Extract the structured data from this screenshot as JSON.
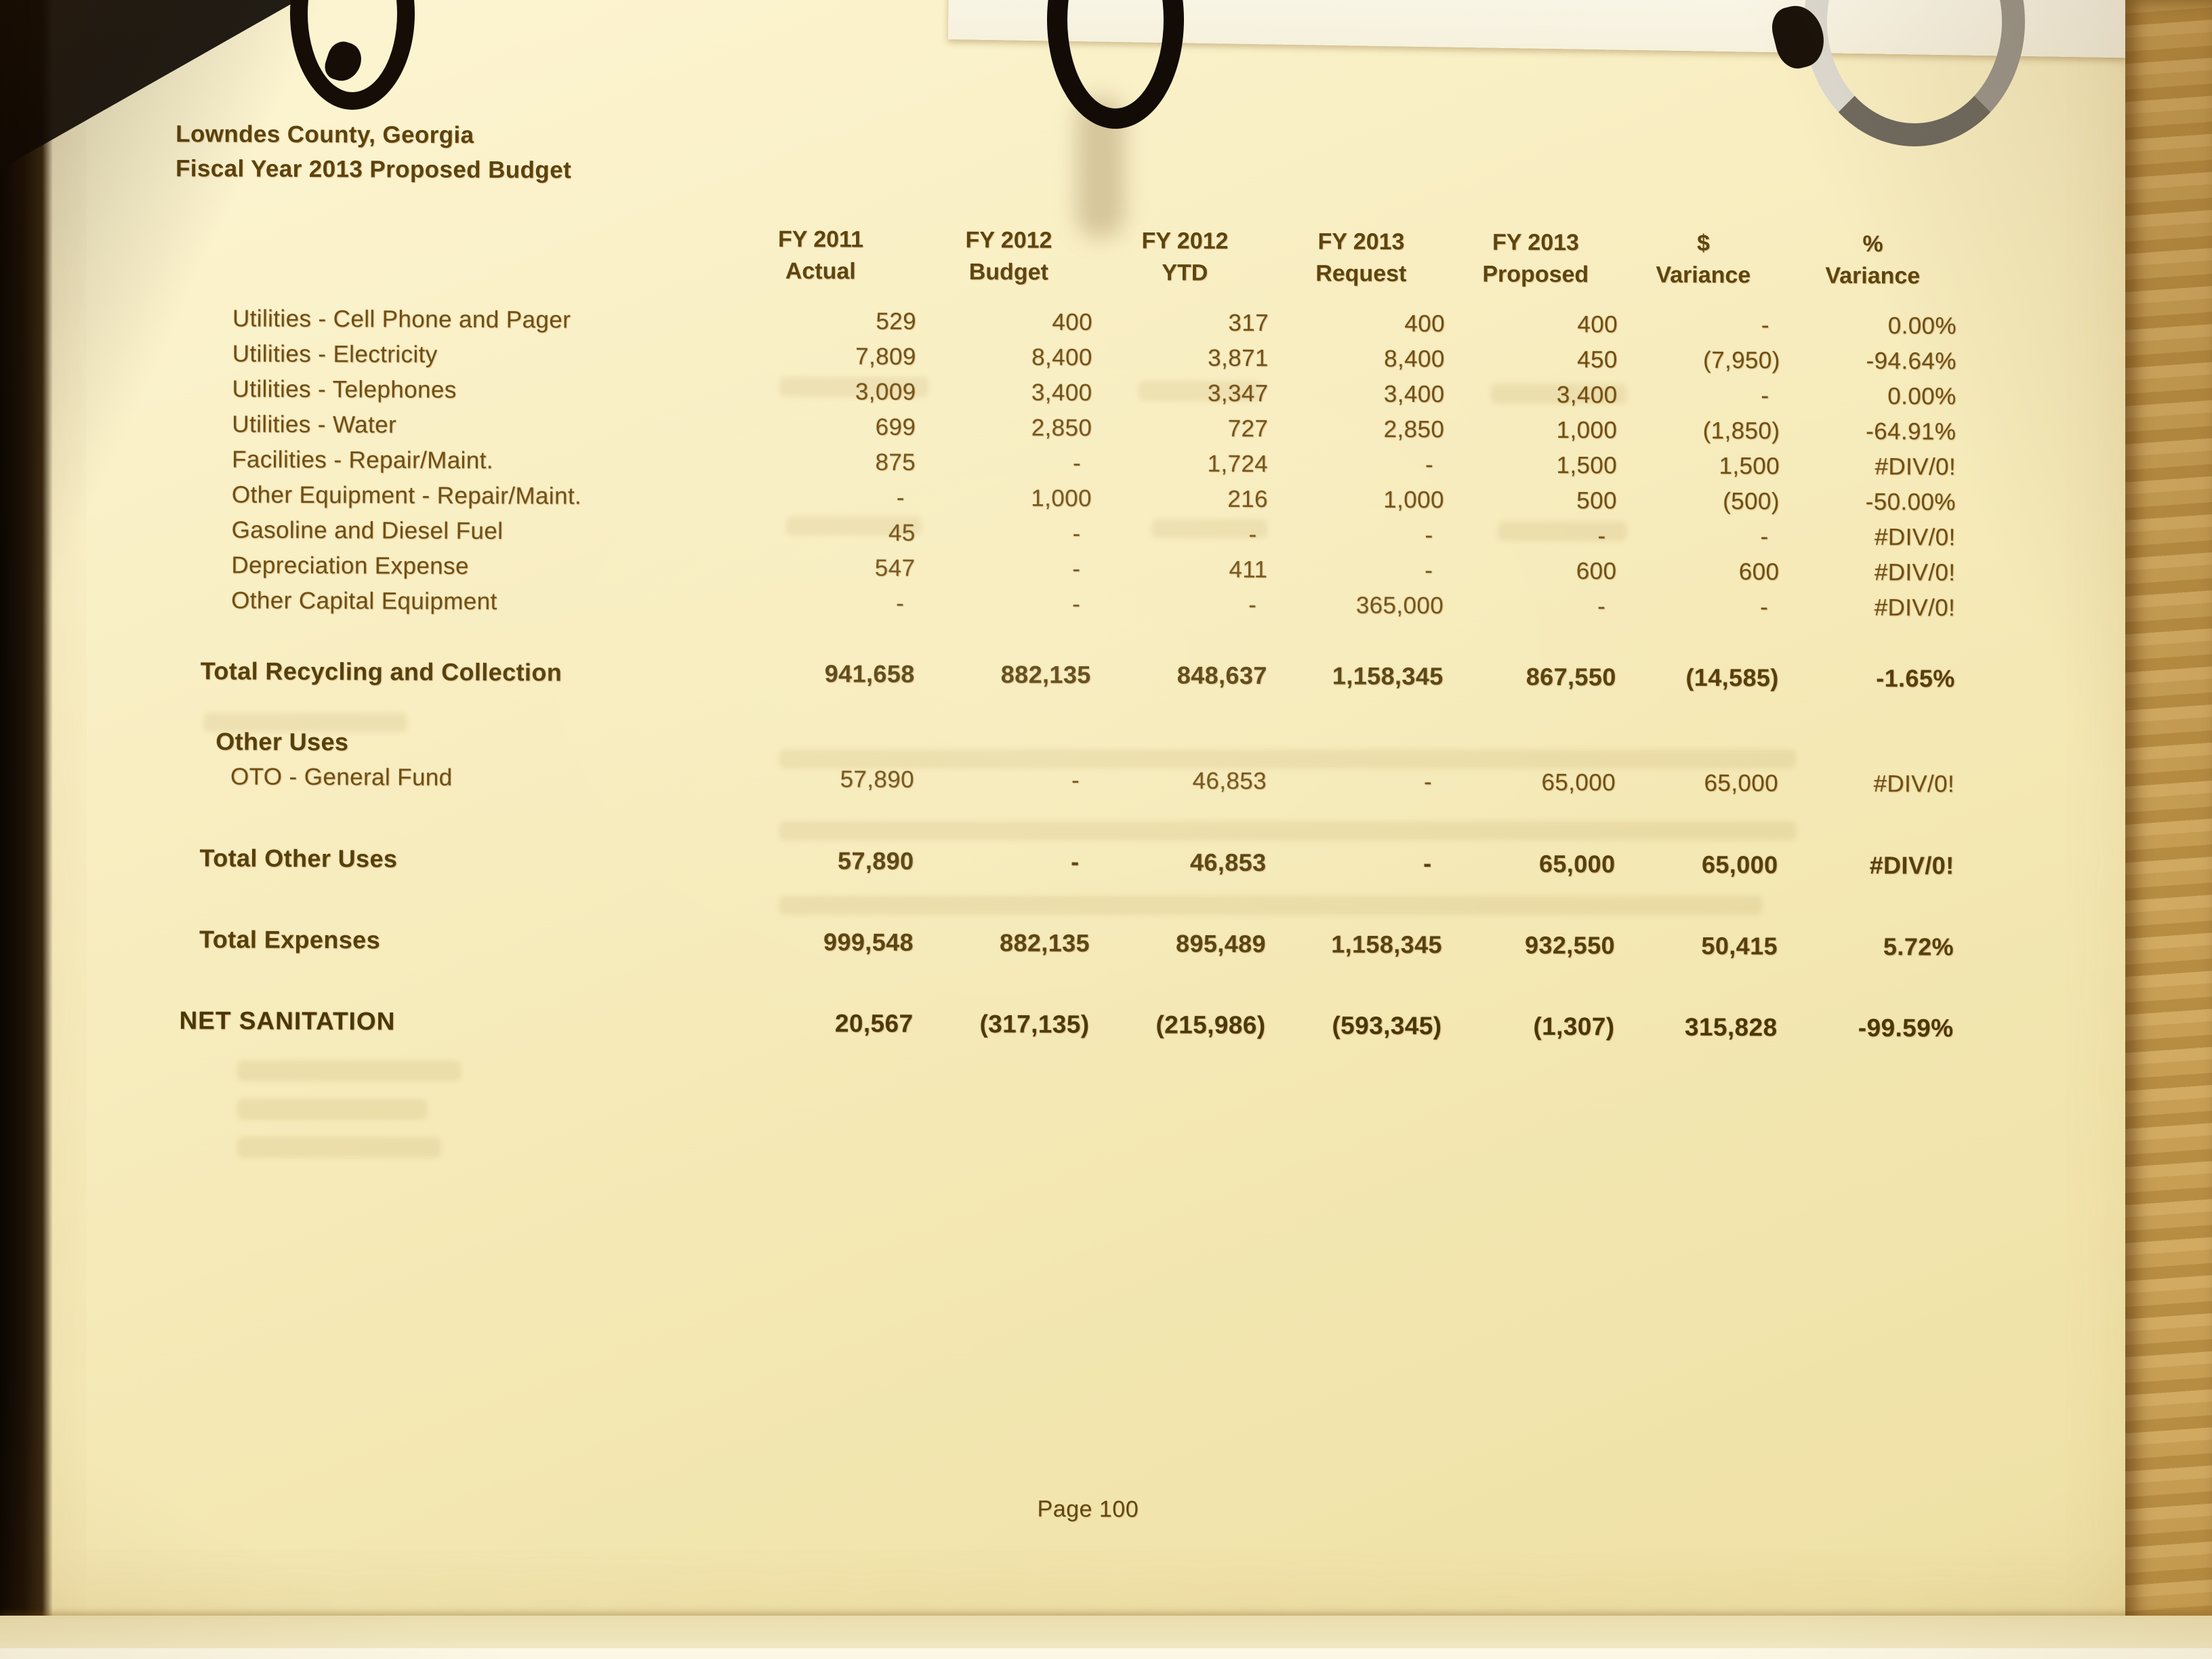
{
  "page": {
    "title": "Lowndes County, Georgia",
    "subtitle": "Fiscal Year 2013 Proposed Budget",
    "footer": "Page 100"
  },
  "colors": {
    "paper": "#f6ecbe",
    "ink": "#6d4f12",
    "ink_bold": "#4a3708"
  },
  "table": {
    "columns": [
      {
        "line1": "FY 2011",
        "line2": "Actual"
      },
      {
        "line1": "FY 2012",
        "line2": "Budget"
      },
      {
        "line1": "FY 2012",
        "line2": "YTD"
      },
      {
        "line1": "FY 2013",
        "line2": "Request"
      },
      {
        "line1": "FY 2013",
        "line2": "Proposed"
      },
      {
        "line1": "$",
        "line2": "Variance"
      },
      {
        "line1": "%",
        "line2": "Variance"
      }
    ],
    "rows": [
      {
        "type": "item",
        "gap": null,
        "label": "Utilities - Cell Phone and Pager",
        "values": [
          "529",
          "400",
          "317",
          "400",
          "400",
          "-",
          "0.00%"
        ]
      },
      {
        "type": "item",
        "gap": null,
        "label": "Utilities - Electricity",
        "values": [
          "7,809",
          "8,400",
          "3,871",
          "8,400",
          "450",
          "(7,950)",
          "-94.64%"
        ]
      },
      {
        "type": "item",
        "gap": null,
        "label": "Utilities - Telephones",
        "values": [
          "3,009",
          "3,400",
          "3,347",
          "3,400",
          "3,400",
          "-",
          "0.00%"
        ]
      },
      {
        "type": "item",
        "gap": null,
        "label": "Utilities - Water",
        "values": [
          "699",
          "2,850",
          "727",
          "2,850",
          "1,000",
          "(1,850)",
          "-64.91%"
        ]
      },
      {
        "type": "item",
        "gap": null,
        "label": "Facilities - Repair/Maint.",
        "values": [
          "875",
          "-",
          "1,724",
          "-",
          "1,500",
          "1,500",
          "#DIV/0!"
        ]
      },
      {
        "type": "item",
        "gap": null,
        "label": "Other Equipment - Repair/Maint.",
        "values": [
          "-",
          "1,000",
          "216",
          "1,000",
          "500",
          "(500)",
          "-50.00%"
        ]
      },
      {
        "type": "item",
        "gap": null,
        "label": "Gasoline and Diesel Fuel",
        "values": [
          "45",
          "-",
          "-",
          "-",
          "-",
          "-",
          "#DIV/0!"
        ]
      },
      {
        "type": "item",
        "gap": null,
        "label": "Depreciation Expense",
        "values": [
          "547",
          "-",
          "411",
          "-",
          "600",
          "600",
          "#DIV/0!"
        ]
      },
      {
        "type": "item",
        "gap": null,
        "label": "Other Capital Equipment",
        "values": [
          "-",
          "-",
          "-",
          "365,000",
          "-",
          "-",
          "#DIV/0!"
        ]
      },
      {
        "type": "total",
        "gap": "md",
        "label": "Total Recycling and Collection",
        "values": [
          "941,658",
          "882,135",
          "848,637",
          "1,158,345",
          "867,550",
          "(14,585)",
          "-1.65%"
        ]
      },
      {
        "type": "section",
        "gap": "md",
        "label": "Other Uses",
        "values": [
          "",
          "",
          "",
          "",
          "",
          "",
          ""
        ]
      },
      {
        "type": "item",
        "gap": null,
        "label": "OTO - General Fund",
        "values": [
          "57,890",
          "-",
          "46,853",
          "-",
          "65,000",
          "65,000",
          "#DIV/0!"
        ]
      },
      {
        "type": "total",
        "gap": "lg",
        "label": "Total Other Uses",
        "values": [
          "57,890",
          "-",
          "46,853",
          "-",
          "65,000",
          "65,000",
          "#DIV/0!"
        ]
      },
      {
        "type": "total",
        "gap": "lg",
        "label": "Total Expenses",
        "values": [
          "999,548",
          "882,135",
          "895,489",
          "1,158,345",
          "932,550",
          "50,415",
          "5.72%"
        ]
      },
      {
        "type": "net",
        "gap": "lg",
        "label": "NET SANITATION",
        "values": [
          "20,567",
          "(317,135)",
          "(215,986)",
          "(593,345)",
          "(1,307)",
          "315,828",
          "-99.59%"
        ]
      }
    ]
  }
}
